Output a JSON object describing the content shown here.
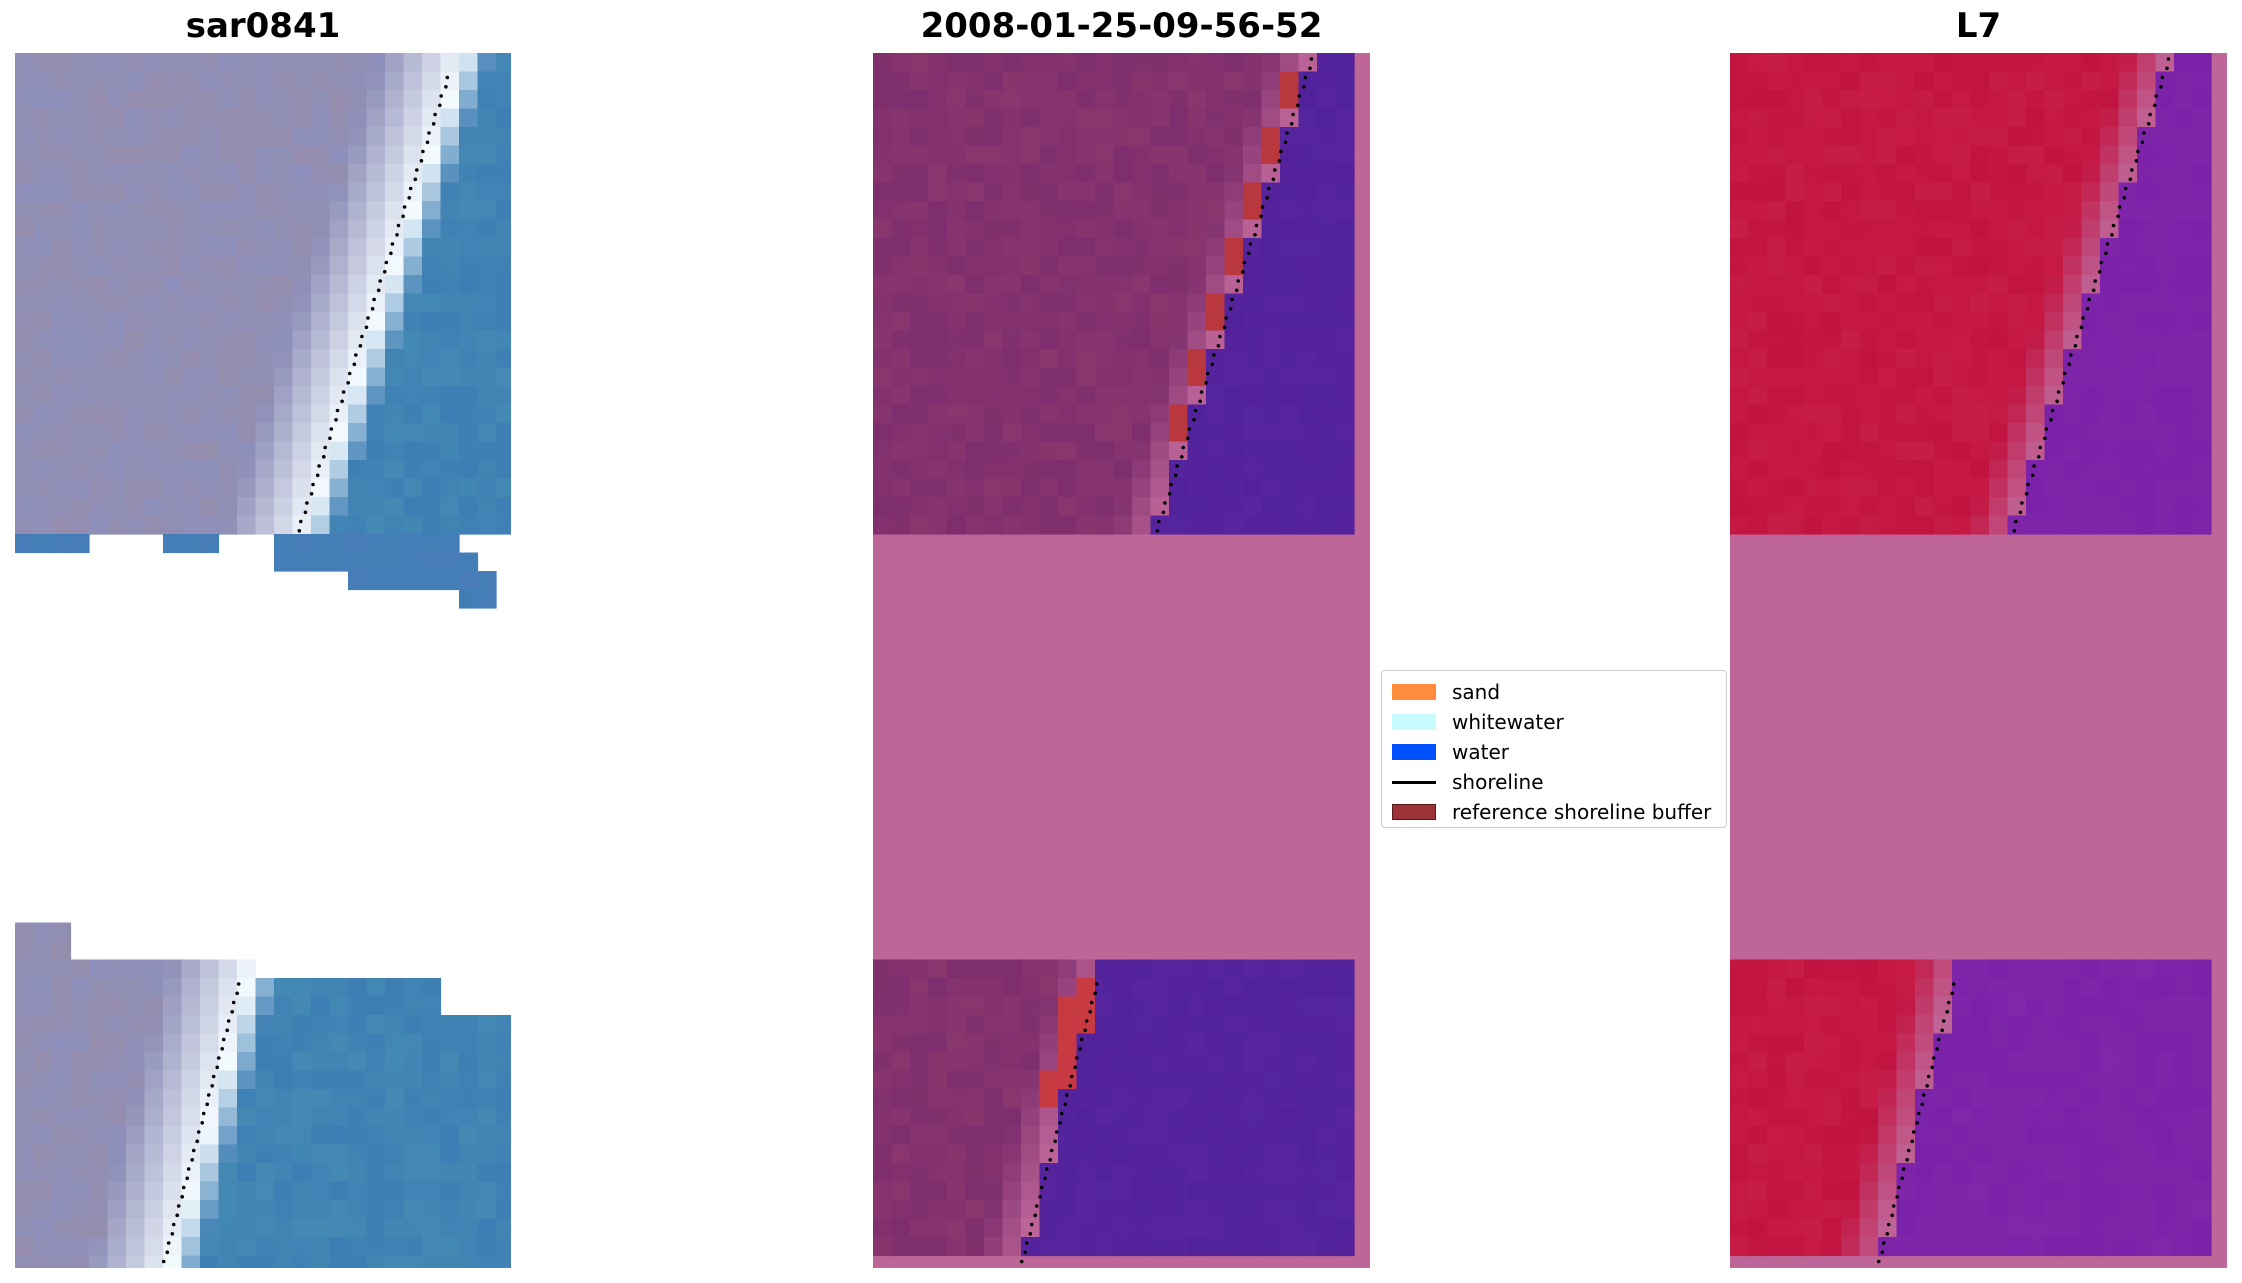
{
  "panels": [
    {
      "id": "rgb",
      "title": "sar0841"
    },
    {
      "id": "classified",
      "title": "2008-01-25-09-56-52"
    },
    {
      "id": "index",
      "title": "L7"
    }
  ],
  "legend": {
    "items": [
      {
        "label": "sand",
        "color": "#ff8c3c"
      },
      {
        "label": "whitewater",
        "color": "#c8fcfc"
      },
      {
        "label": "water",
        "color": "#0050ff"
      },
      {
        "label": "shoreline",
        "color": "#000000",
        "kind": "line"
      },
      {
        "label": "reference shoreline buffer",
        "color": "#9b3236",
        "border": "#5a1a1a"
      }
    ]
  },
  "colors": {
    "nodata": "#bf6699",
    "classified_land": "#7f2f6e",
    "classified_water": "#52229a",
    "index_land": "#c21440",
    "index_water": "#7a22a8",
    "rgb_land": "#8f8fb8",
    "rgb_water": "#3f80b4",
    "rgb_white": "#f4fbff"
  }
}
